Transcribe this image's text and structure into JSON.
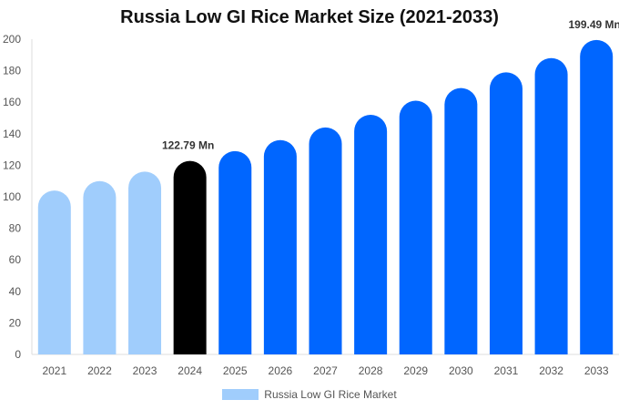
{
  "chart_data": {
    "type": "bar",
    "title": "Russia Low GI Rice Market Size (2021-2033)",
    "categories": [
      "2021",
      "2022",
      "2023",
      "2024",
      "2025",
      "2026",
      "2027",
      "2028",
      "2029",
      "2030",
      "2031",
      "2032",
      "2033"
    ],
    "series": [
      {
        "name": "Russia Low GI Rice Market",
        "values": [
          104,
          110,
          116,
          122.79,
          129,
          136,
          144,
          152,
          161,
          169,
          179,
          188,
          199.49
        ]
      }
    ],
    "bar_colors": [
      "#a0cdfc",
      "#a0cdfc",
      "#a0cdfc",
      "#000000",
      "#0066ff",
      "#0066ff",
      "#0066ff",
      "#0066ff",
      "#0066ff",
      "#0066ff",
      "#0066ff",
      "#0066ff",
      "#0066ff"
    ],
    "data_labels": {
      "3": "122.79 Mn",
      "12": "199.49 Mn"
    },
    "ylim": [
      0,
      200
    ],
    "yticks": [
      0,
      20,
      40,
      60,
      80,
      100,
      120,
      140,
      160,
      180,
      200
    ],
    "grid": false,
    "legend_position": "bottom"
  }
}
